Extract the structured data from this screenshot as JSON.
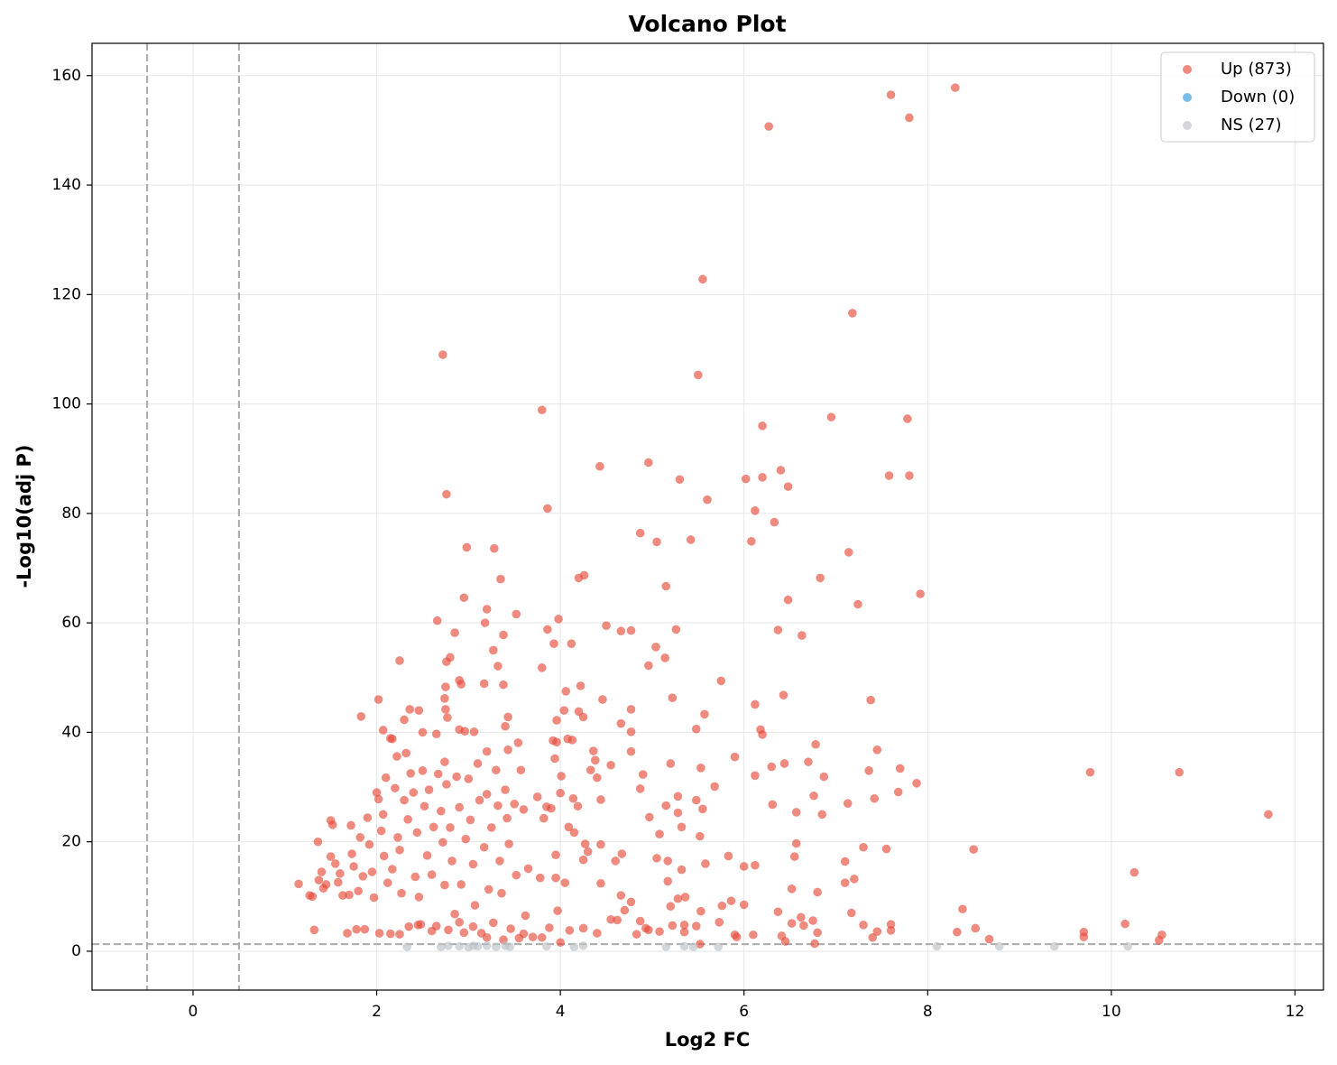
{
  "chart_data": {
    "type": "scatter",
    "title": "Volcano Plot",
    "x_label": "Log2 FC",
    "y_label": "-Log10(adj P)",
    "xlim": [
      -1.1,
      12.31
    ],
    "ylim": [
      -7.1,
      165.9
    ],
    "xticks": [
      0,
      2,
      4,
      6,
      8,
      10,
      12
    ],
    "yticks": [
      0,
      20,
      40,
      60,
      80,
      100,
      120,
      140,
      160
    ],
    "grid": true,
    "legend": "upper right",
    "thresholds": {
      "x": [
        -0.5,
        0.5
      ],
      "y": 1.3
    },
    "series": [
      {
        "name": "Up (873)",
        "color": "#e74c3c",
        "x": [
          8.3,
          7.6,
          7.8,
          6.27,
          5.55,
          7.18,
          2.72,
          5.5,
          3.8,
          6.95,
          7.78,
          6.2,
          4.96,
          4.43,
          6.4,
          7.58,
          7.8,
          6.2,
          6.02,
          5.3,
          6.48,
          2.76,
          5.6,
          3.86,
          6.12,
          6.33,
          4.87,
          5.42,
          5.05,
          6.08,
          2.98,
          3.28,
          7.14,
          4.26,
          4.2,
          3.35,
          6.83,
          5.15,
          7.92,
          2.95,
          6.48,
          7.24,
          3.2,
          3.52,
          3.98,
          2.66,
          3.18,
          4.5,
          4.66,
          4.77,
          5.26,
          3.86,
          6.37,
          6.63,
          2.85,
          3.38,
          3.93,
          4.12,
          5.04,
          3.27,
          5.14,
          2.8,
          2.25,
          2.76,
          3.32,
          4.96,
          3.8,
          5.75,
          2.9,
          2.92,
          3.17,
          3.38,
          4.22,
          2.75,
          4.06,
          6.43,
          5.22,
          2.74,
          2.02,
          4.46,
          7.38,
          6.12,
          2.36,
          2.46,
          4.2,
          2.75,
          4.77,
          5.57,
          1.83,
          2.3,
          2.77,
          4.25,
          3.43,
          3.96,
          3.4,
          4.66,
          2.07,
          2.9,
          2.96,
          3.06,
          2.5,
          2.65,
          3.96,
          4.77,
          5.48,
          6.18,
          6.2,
          2.17,
          3.54,
          4.08,
          6.78,
          7.45,
          3.43,
          4.36,
          3.2,
          4.77,
          5.9,
          2.74,
          9.77,
          10.74,
          11.71,
          10.25,
          10.15,
          10.55,
          10.52,
          9.7,
          9.7,
          8.5,
          8.38,
          8.32,
          8.52,
          8.67,
          7.88,
          7.7,
          7.68,
          7.55,
          7.6,
          7.6,
          7.45,
          7.4,
          7.3,
          7.2,
          7.1,
          7.1,
          7.13,
          7.42,
          7.36,
          7.17,
          7.3,
          6.85,
          6.87,
          6.76,
          6.7,
          6.8,
          6.8,
          6.75,
          6.77,
          6.62,
          6.65,
          6.55,
          6.57,
          6.57,
          6.52,
          6.52,
          6.44,
          6.31,
          6.3,
          6.37,
          6.41,
          6.45,
          6.12,
          6.12,
          6,
          6,
          5.92,
          5.86,
          5.76,
          5.83,
          5.68,
          5.53,
          5.52,
          5.55,
          5.48,
          5.32,
          5.28,
          5.28,
          5.32,
          5.2,
          5.17,
          5.17,
          5.2,
          5.15,
          5.08,
          5.05,
          4.97,
          4.87,
          4.9,
          4.93,
          4.87,
          4.83,
          4.96,
          5.08,
          5.22,
          5.35,
          5.36,
          5.28,
          5.58,
          5.73,
          5.9,
          6.1,
          5.53,
          5.48,
          5.35,
          5.52,
          4.67,
          4.6,
          4.77,
          4.66,
          4.62,
          4.7,
          4.44,
          4.44,
          4.33,
          4.38,
          4.4,
          4.44,
          4.55,
          4.27,
          4.3,
          4.25,
          4.09,
          4.15,
          4.19,
          4.13,
          4.14,
          4.04,
          4.01,
          4,
          3.95,
          3.95,
          3.97,
          4.05,
          1.15,
          1.27,
          1.3,
          1.32,
          1.36,
          1.37,
          1.4,
          1.42,
          1.45,
          1.5,
          1.52,
          1.5,
          1.55,
          1.58,
          1.6,
          1.63,
          1.68,
          1.7,
          1.72,
          1.73,
          1.75,
          1.78,
          1.8,
          1.82,
          1.85,
          1.87,
          1.9,
          1.92,
          1.95,
          1.97,
          2,
          2.02,
          2.03,
          2.05,
          2.07,
          2.08,
          2.1,
          2.12,
          2.15,
          2.17,
          2.2,
          2.22,
          2.23,
          2.25,
          2.27,
          2.3,
          2.32,
          2.34,
          2.35,
          2.37,
          2.4,
          2.42,
          2.44,
          2.46,
          2.48,
          2.5,
          2.52,
          2.55,
          2.57,
          2.6,
          2.62,
          2.65,
          2.67,
          2.7,
          2.72,
          2.74,
          2.76,
          2.78,
          2.8,
          2.82,
          2.85,
          2.87,
          2.9,
          2.92,
          2.95,
          2.97,
          3,
          3.02,
          3.05,
          3.07,
          3.1,
          3.12,
          3.14,
          3.17,
          3.2,
          3.22,
          3.25,
          3.27,
          3.3,
          3.32,
          3.34,
          3.36,
          3.38,
          3.4,
          3.42,
          3.44,
          3.46,
          3.5,
          3.52,
          3.55,
          3.57,
          3.6,
          3.62,
          3.65,
          3.7,
          3.75,
          3.78,
          3.82,
          3.85,
          3.88,
          3.9,
          3.92,
          3.94,
          2.15,
          2.25,
          2.45,
          2.6,
          2.9,
          3.05,
          3.2,
          3.6,
          3.8,
          4.1,
          4.25,
          4.4,
          4.55,
          4
        ],
        "values": [
          157.8,
          156.5,
          152.3,
          150.7,
          122.8,
          116.6,
          109,
          105.3,
          98.9,
          97.6,
          97.3,
          96,
          89.3,
          88.6,
          87.9,
          86.9,
          86.9,
          86.6,
          86.3,
          86.2,
          84.9,
          83.5,
          82.5,
          80.9,
          80.5,
          78.4,
          76.4,
          75.2,
          74.8,
          74.9,
          73.8,
          73.6,
          72.9,
          68.7,
          68.2,
          68,
          68.2,
          66.7,
          65.3,
          64.6,
          64.2,
          63.4,
          62.5,
          61.6,
          60.7,
          60.4,
          60,
          59.5,
          58.5,
          58.6,
          58.8,
          58.8,
          58.7,
          57.7,
          58.2,
          57.8,
          56.2,
          56.2,
          55.6,
          55,
          53.6,
          53.7,
          53.1,
          52.9,
          52.1,
          52.2,
          51.8,
          49.4,
          49.5,
          48.8,
          48.9,
          48.7,
          48.5,
          48.3,
          47.5,
          46.8,
          46.3,
          46.2,
          46,
          46,
          45.9,
          45.1,
          44.2,
          44,
          43.8,
          44.2,
          44.2,
          43.3,
          42.9,
          42.3,
          42.7,
          42.8,
          42.8,
          42.2,
          41.1,
          41.6,
          40.4,
          40.5,
          40.2,
          40.1,
          40,
          39.7,
          38.2,
          40.1,
          40.6,
          40.5,
          39.6,
          38.8,
          38.1,
          38.8,
          37.8,
          36.8,
          36.8,
          36.6,
          36.5,
          36.5,
          35.5,
          34.6,
          32.7,
          32.7,
          25,
          14.4,
          5,
          3,
          2,
          3.5,
          2.6,
          18.6,
          7.7,
          3.5,
          4.2,
          2.2,
          30.7,
          33.4,
          29.1,
          18.7,
          4.9,
          3.8,
          3.6,
          2.5,
          19,
          13.2,
          12.5,
          16.4,
          27,
          27.9,
          33,
          7,
          4.8,
          25,
          31.9,
          28.4,
          34.6,
          10.8,
          3.4,
          5.6,
          1.4,
          6.2,
          4.7,
          17.3,
          25.4,
          19.7,
          11.4,
          5.1,
          34.3,
          26.8,
          33.7,
          7.2,
          2.8,
          1.8,
          32.1,
          15.7,
          15.5,
          8.5,
          2.6,
          9.2,
          8.3,
          17.4,
          30.1,
          33.5,
          21,
          26,
          27.6,
          22.7,
          25.3,
          28.3,
          14.9,
          8.2,
          12.8,
          16.5,
          34.3,
          26.6,
          21.4,
          17,
          24.5,
          29.7,
          32.3,
          4.2,
          5.5,
          3.1,
          3.9,
          3.6,
          4.7,
          4.8,
          9.9,
          9.6,
          16,
          5.3,
          3,
          3,
          7.3,
          4.6,
          3.5,
          1.3,
          17.8,
          16.5,
          9,
          10.2,
          5.7,
          7.5,
          12.4,
          19.5,
          33.1,
          34.9,
          31.7,
          27.7,
          34,
          19.6,
          18.2,
          16.7,
          22.7,
          21.7,
          26.5,
          38.6,
          27.9,
          44,
          32,
          28.9,
          17.6,
          13.4,
          7.4,
          12.5,
          12.3,
          10.2,
          10,
          3.9,
          20,
          13,
          14.5,
          11.5,
          12.2,
          23.9,
          23.1,
          17.3,
          16,
          12.6,
          14.2,
          10.2,
          3.3,
          10.3,
          23,
          17.8,
          15.5,
          4,
          11,
          20.8,
          13.7,
          4,
          24.4,
          19.5,
          14.5,
          9.8,
          29,
          27.8,
          3.3,
          22,
          25,
          17.4,
          31.7,
          12.5,
          38.9,
          15,
          29.8,
          35.6,
          20.8,
          18.5,
          10.6,
          27.6,
          36.2,
          24.1,
          4.5,
          32.5,
          29,
          13.6,
          21.7,
          9.9,
          4.9,
          33,
          26.5,
          17.5,
          29.5,
          14,
          22.7,
          4.6,
          32.4,
          25.6,
          19.9,
          12.1,
          30.5,
          3.9,
          22.6,
          16.5,
          6.8,
          31.9,
          26.3,
          12.2,
          3.4,
          20.5,
          31.5,
          24,
          15.9,
          8.4,
          34.3,
          27.6,
          3.3,
          19,
          28.7,
          11.3,
          22.6,
          5.2,
          33.1,
          26.6,
          16.5,
          10.6,
          2.1,
          29.5,
          24.3,
          19.6,
          4.1,
          26.9,
          13.9,
          2.4,
          33.1,
          25.9,
          6.5,
          15.1,
          2.6,
          28.2,
          13.4,
          24.3,
          26.4,
          4.3,
          26.1,
          38.5,
          35.2,
          3.2,
          3.1,
          4.8,
          3.7,
          5.3,
          4.5,
          2.5,
          3.2,
          2.5,
          3.8,
          4.2,
          3.3,
          5.8,
          1.6
        ]
      },
      {
        "name": "Down (0)",
        "color": "#3498db",
        "x": [],
        "values": []
      },
      {
        "name": "NS (27)",
        "color": "#bdc3c7",
        "x": [
          2.33,
          2.7,
          2.78,
          2.9,
          3,
          3.05,
          3.1,
          3.2,
          3.3,
          3.4,
          3.45,
          3.85,
          4.15,
          4.25,
          5.15,
          5.35,
          5.45,
          5.72,
          8.1,
          8.78,
          9.38,
          10.18
        ],
        "values": [
          0.8,
          0.8,
          1,
          0.9,
          0.7,
          1,
          0.9,
          1,
          0.8,
          1,
          0.8,
          0.9,
          0.8,
          1,
          0.8,
          0.9,
          0.8,
          0.8,
          0.9,
          0.9,
          0.9,
          0.9
        ]
      }
    ]
  }
}
